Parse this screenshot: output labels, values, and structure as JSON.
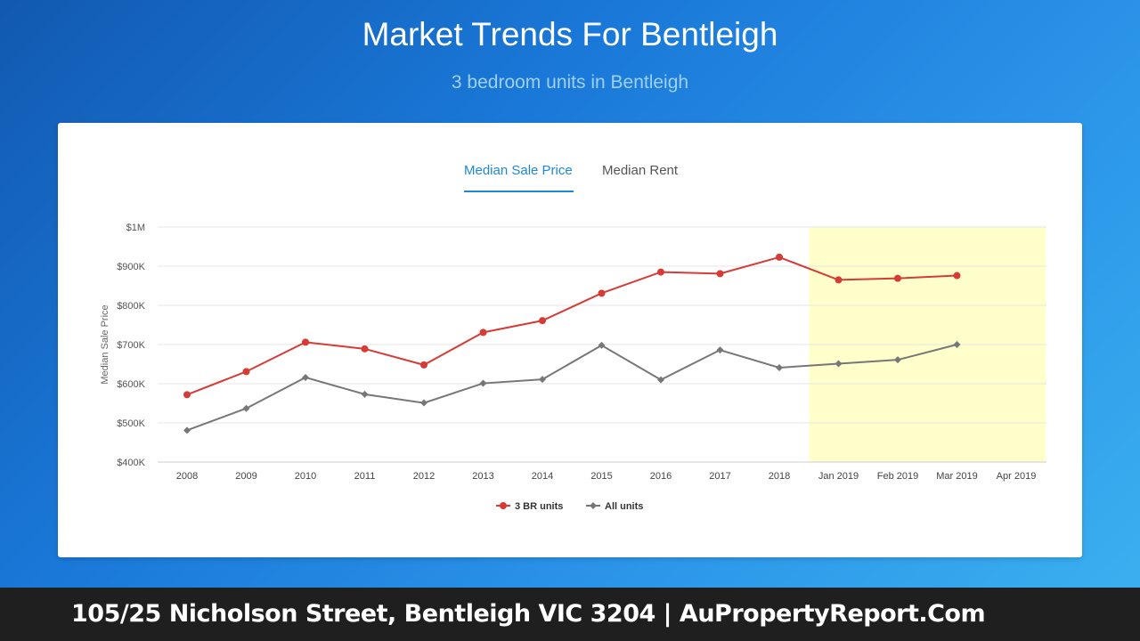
{
  "header": {
    "title": "Market Trends For Bentleigh",
    "subtitle": "3 bedroom units in Bentleigh"
  },
  "tabs": [
    {
      "label": "Median Sale Price",
      "active": true
    },
    {
      "label": "Median Rent",
      "active": false
    }
  ],
  "footer": {
    "text": "105/25 Nicholson Street, Bentleigh VIC 3204 | AuPropertyReport.Com"
  },
  "chart_data": {
    "type": "line",
    "title": "",
    "xlabel": "",
    "ylabel": "Median Sale Price",
    "categories": [
      "2008",
      "2009",
      "2010",
      "2011",
      "2012",
      "2013",
      "2014",
      "2015",
      "2016",
      "2017",
      "2018",
      "Jan 2019",
      "Feb 2019",
      "Mar 2019",
      "Apr 2019"
    ],
    "ylim": [
      400000,
      1000000
    ],
    "y_ticks": [
      400000,
      500000,
      600000,
      700000,
      800000,
      900000,
      1000000
    ],
    "y_tick_labels": [
      "$400K",
      "$500K",
      "$600K",
      "$700K",
      "$800K",
      "$900K",
      "$1M"
    ],
    "grid": true,
    "legend_position": "bottom",
    "highlight_region": {
      "from": "Jan 2019",
      "to": "Apr 2019",
      "color": "#ffffcc"
    },
    "series": [
      {
        "name": "3 BR units",
        "color": "#d63b36",
        "marker": "circle",
        "values": [
          572000,
          631000,
          706000,
          689000,
          648000,
          731000,
          761000,
          831000,
          885000,
          881000,
          923000,
          865000,
          869000,
          876000,
          null
        ]
      },
      {
        "name": "All units",
        "color": "#777777",
        "marker": "diamond",
        "values": [
          481000,
          537000,
          616000,
          573000,
          551000,
          601000,
          611000,
          698000,
          610000,
          686000,
          641000,
          651000,
          661000,
          700000,
          null
        ]
      }
    ]
  }
}
